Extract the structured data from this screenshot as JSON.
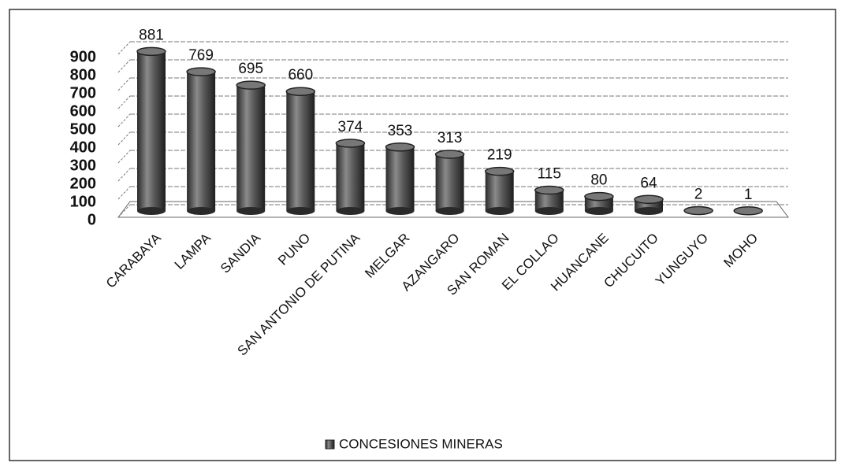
{
  "chart_data": {
    "type": "bar",
    "categories": [
      "CARABAYA",
      "LAMPA",
      "SANDIA",
      "PUNO",
      "SAN ANTONIO DE PUTINA",
      "MELGAR",
      "AZANGARO",
      "SAN ROMAN",
      "EL COLLAO",
      "HUANCANE",
      "CHUCUITO",
      "YUNGUYO",
      "MOHO"
    ],
    "series": [
      {
        "name": "CONCESIONES MINERAS",
        "color": "#4a4a4a",
        "values": [
          881,
          769,
          695,
          660,
          374,
          353,
          313,
          219,
          115,
          80,
          64,
          2,
          1
        ]
      }
    ],
    "ylim": [
      0,
      900
    ],
    "yticks": [
      0,
      100,
      200,
      300,
      400,
      500,
      600,
      700,
      800,
      900
    ],
    "grid": true
  }
}
